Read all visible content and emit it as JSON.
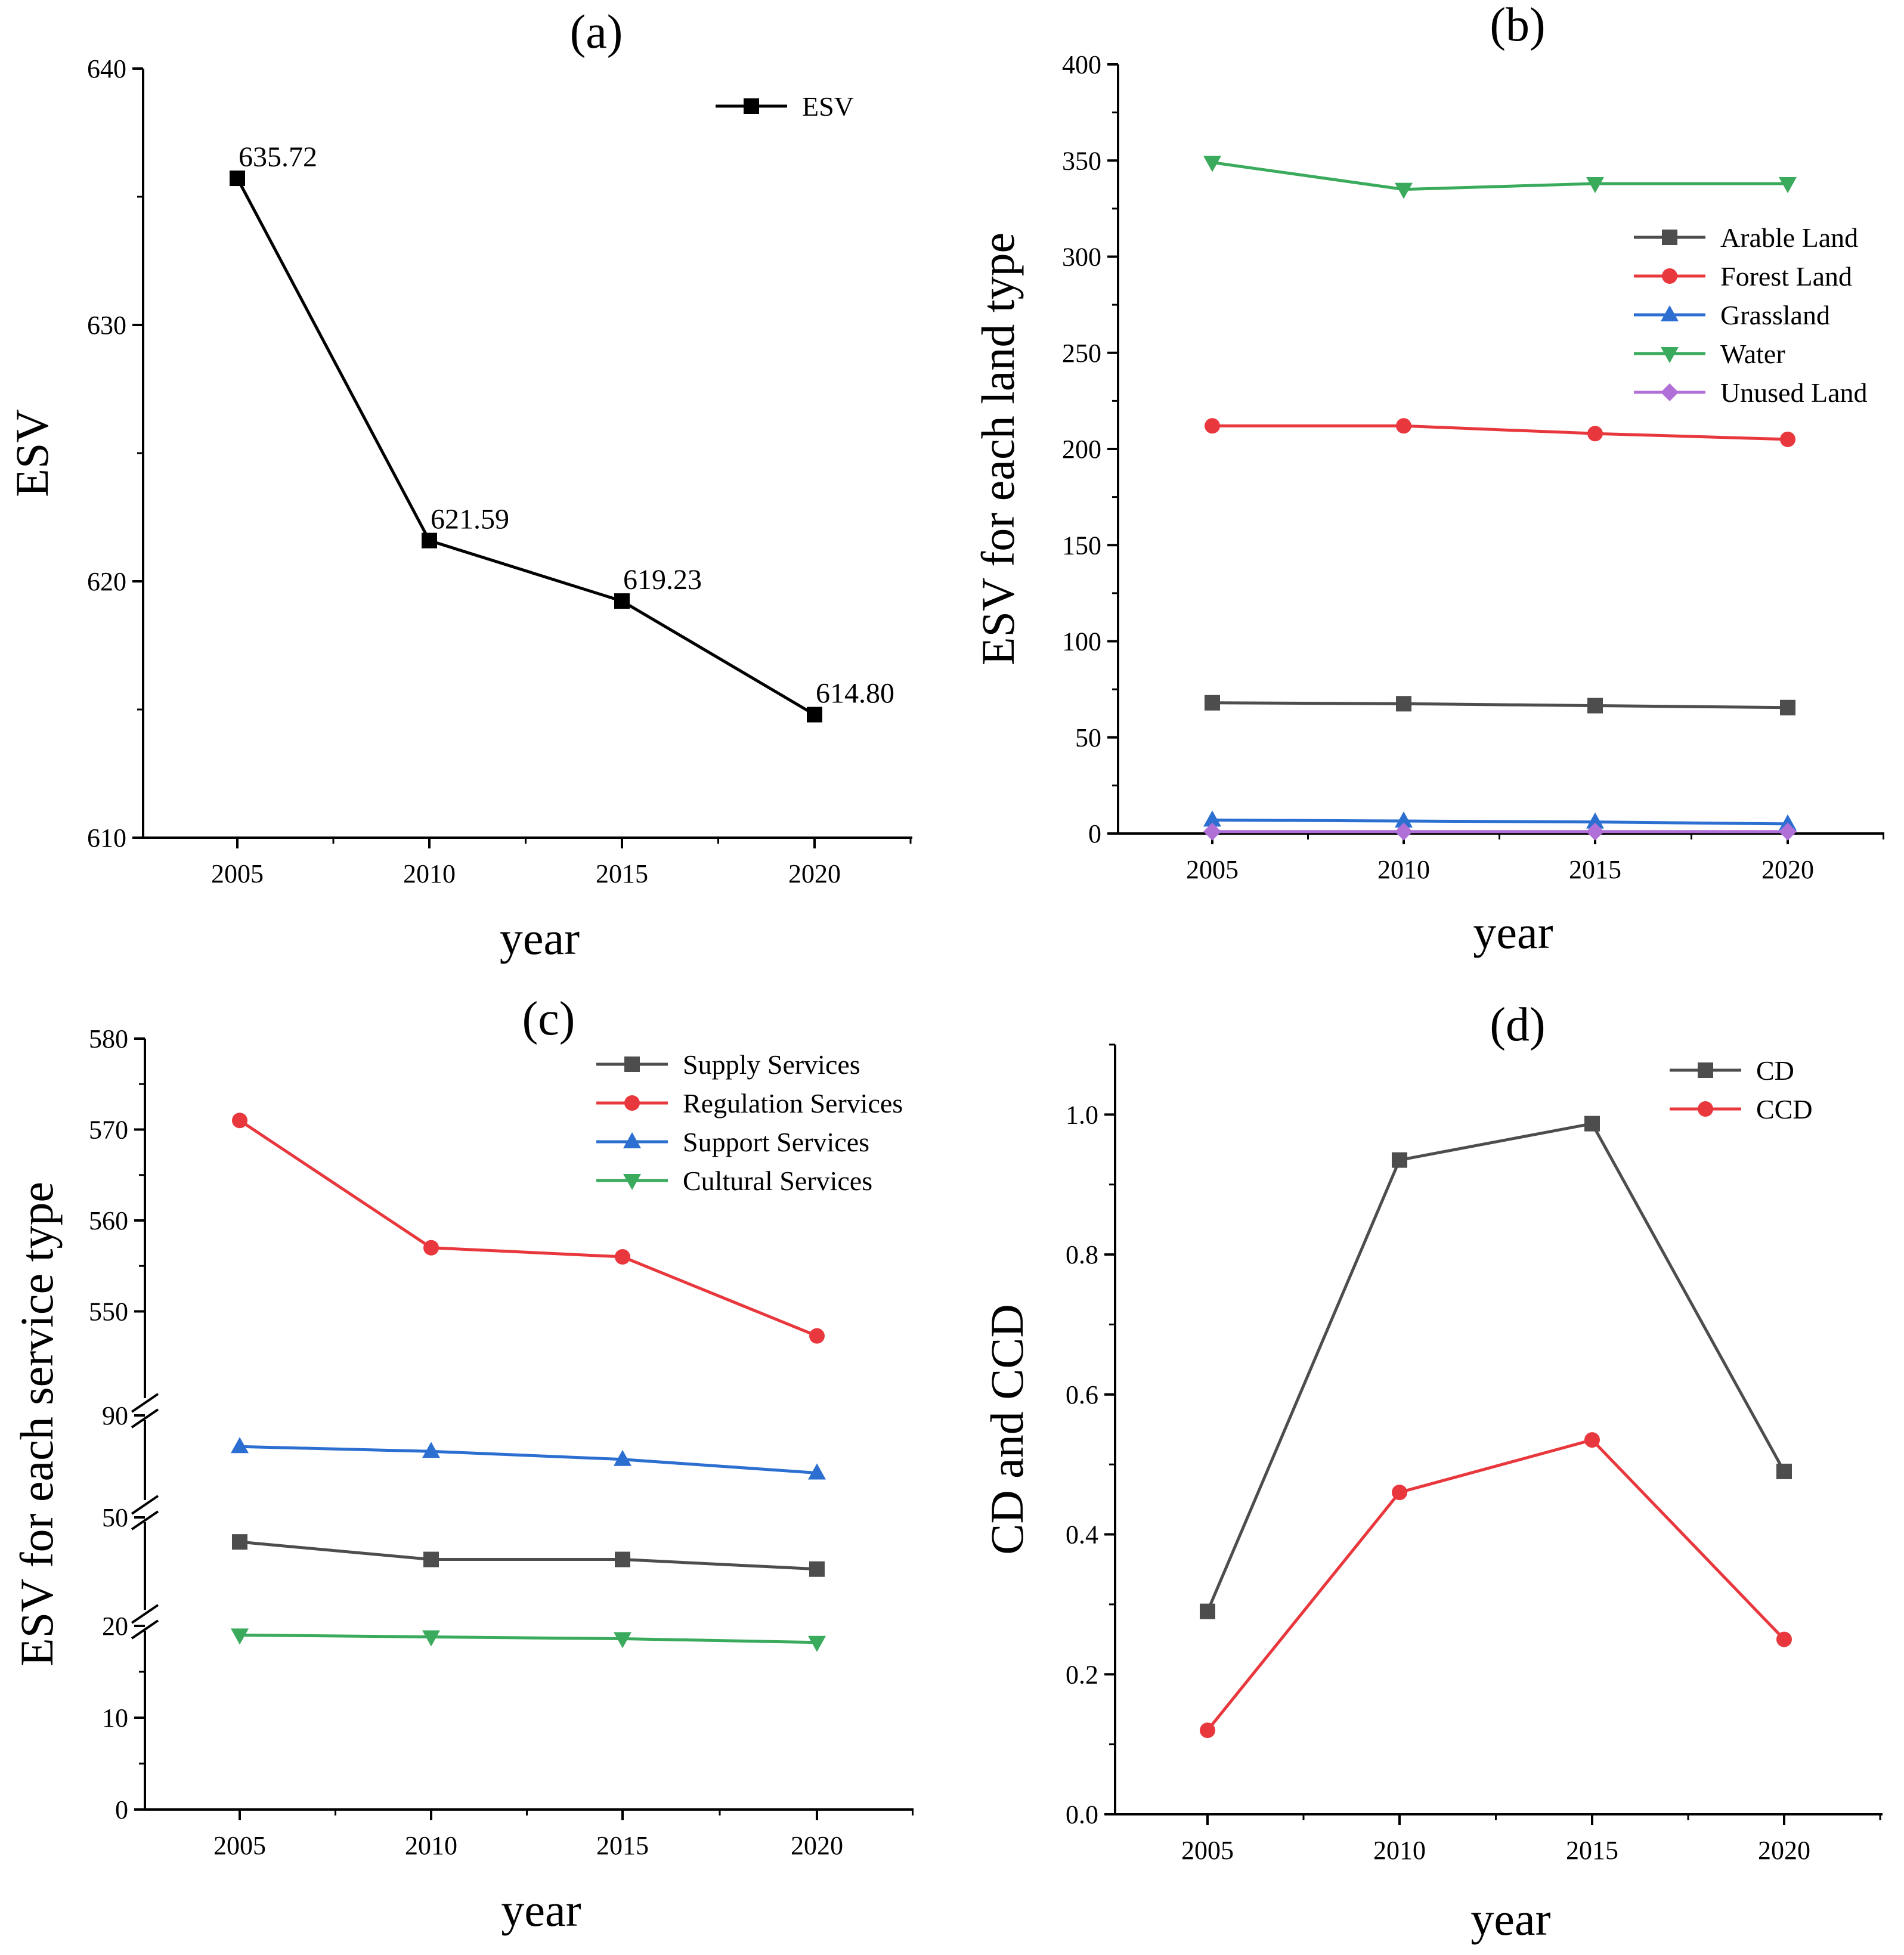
{
  "chart_data": [
    {
      "id": "a",
      "type": "line",
      "title": "(a)",
      "xlabel": "year",
      "ylabel": "ESV",
      "categories": [
        "2005",
        "2010",
        "2015",
        "2020"
      ],
      "ylim": [
        610,
        640
      ],
      "yticks": [
        610,
        620,
        630,
        640
      ],
      "legend_position": "top-right",
      "series": [
        {
          "name": "ESV",
          "color": "#000000",
          "marker": "square",
          "values": [
            635.72,
            621.59,
            619.23,
            614.8
          ]
        }
      ],
      "data_labels": [
        "635.72",
        "621.59",
        "619.23",
        "614.80"
      ]
    },
    {
      "id": "b",
      "type": "line",
      "title": "(b)",
      "xlabel": "year",
      "ylabel": "ESV for each land type",
      "categories": [
        "2005",
        "2010",
        "2015",
        "2020"
      ],
      "ylim": [
        0,
        400
      ],
      "yticks": [
        0,
        50,
        100,
        150,
        200,
        250,
        300,
        350,
        400
      ],
      "legend_position": "right",
      "series": [
        {
          "name": "Arable Land",
          "color": "#4d4d4d",
          "marker": "square",
          "values": [
            68,
            67.5,
            66.5,
            65.5
          ]
        },
        {
          "name": "Forest Land",
          "color": "#e8383d",
          "marker": "circle",
          "values": [
            212,
            212,
            208,
            205
          ]
        },
        {
          "name": "Grassland",
          "color": "#2c6fd1",
          "marker": "triangle-up",
          "values": [
            7,
            6.5,
            6,
            5
          ]
        },
        {
          "name": "Water",
          "color": "#3aaa5c",
          "marker": "triangle-down",
          "values": [
            349,
            335,
            338,
            338
          ]
        },
        {
          "name": "Unused Land",
          "color": "#b070d8",
          "marker": "diamond",
          "values": [
            1,
            1,
            1,
            1
          ]
        }
      ]
    },
    {
      "id": "c",
      "type": "line",
      "title": "(c)",
      "xlabel": "year",
      "ylabel": "ESV for each service type",
      "categories": [
        "2005",
        "2010",
        "2015",
        "2020"
      ],
      "ylim": [
        0,
        580
      ],
      "yticks": [
        0,
        10,
        20,
        50,
        90,
        550,
        560,
        570,
        580
      ],
      "axis_breaks": [
        [
          20,
          40
        ],
        [
          50,
          80
        ],
        [
          90,
          540
        ]
      ],
      "legend_position": "top-right",
      "series": [
        {
          "name": "Supply Services",
          "color": "#4d4d4d",
          "marker": "square",
          "values": [
            47.2,
            45.2,
            45.2,
            44.1
          ]
        },
        {
          "name": "Regulation Services",
          "color": "#e8383d",
          "marker": "circle",
          "values": [
            571,
            557,
            556,
            547.3
          ]
        },
        {
          "name": "Support Services",
          "color": "#2c6fd1",
          "marker": "triangle-up",
          "values": [
            86.1,
            85.5,
            84.5,
            82.8
          ]
        },
        {
          "name": "Cultural Services",
          "color": "#3aaa5c",
          "marker": "triangle-down",
          "values": [
            19,
            18.8,
            18.6,
            18.2
          ]
        }
      ]
    },
    {
      "id": "d",
      "type": "line",
      "title": "(d)",
      "xlabel": "year",
      "ylabel": "CD and CCD",
      "categories": [
        "2005",
        "2010",
        "2015",
        "2020"
      ],
      "ylim": [
        0,
        1.1
      ],
      "yticks": [
        "0.0",
        "0.2",
        "0.4",
        "0.6",
        "0.8",
        "1.0"
      ],
      "legend_position": "top-right",
      "series": [
        {
          "name": "CD",
          "color": "#4d4d4d",
          "marker": "square",
          "values": [
            0.29,
            0.935,
            0.987,
            0.49
          ]
        },
        {
          "name": "CCD",
          "color": "#e8383d",
          "marker": "circle",
          "values": [
            0.12,
            0.46,
            0.535,
            0.25
          ]
        }
      ]
    }
  ]
}
